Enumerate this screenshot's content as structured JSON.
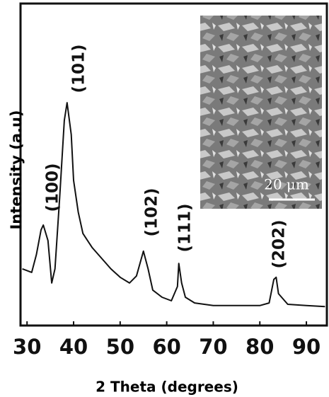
{
  "chart_data": {
    "type": "line",
    "x_label": "2 Theta (degrees)",
    "y_label": "Intensity (a.u)",
    "xlim": [
      28.6,
      94.4
    ],
    "xticks": [
      30,
      40,
      50,
      60,
      70,
      80,
      90
    ],
    "ylim": [
      0,
      100
    ],
    "color": "#111111",
    "x": [
      29,
      31,
      32,
      33,
      33.5,
      34.5,
      35.3,
      36,
      37,
      38,
      38.6,
      39.5,
      40,
      41,
      42,
      44,
      46,
      48,
      50,
      52,
      53.5,
      55,
      56,
      57,
      59,
      61,
      62.3,
      62.6,
      63.2,
      64,
      66,
      70,
      75,
      80,
      82,
      83,
      83.5,
      84,
      86,
      90,
      94
    ],
    "values": [
      17.6,
      16.5,
      22.0,
      29.7,
      31.2,
      26.4,
      13.2,
      17.6,
      39.6,
      63.7,
      69.2,
      59.3,
      45.1,
      35.2,
      28.6,
      24.2,
      20.9,
      17.6,
      15.0,
      13.2,
      15.4,
      23.1,
      17.6,
      11.0,
      8.8,
      7.7,
      12.1,
      19.3,
      13.2,
      8.8,
      7.0,
      6.2,
      6.2,
      6.2,
      7.0,
      14.3,
      15.0,
      9.9,
      6.6,
      6.2,
      5.9
    ],
    "annotations": [
      "(100)",
      "(101)",
      "(102)",
      "(111)",
      "(202)"
    ],
    "inset_scale_label": "20 μm"
  }
}
